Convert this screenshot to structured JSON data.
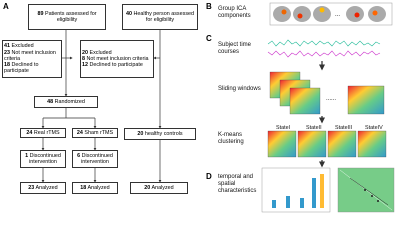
{
  "panel_a": {
    "label": "A",
    "patients": {
      "count": "89",
      "text": "Patients assessed for eligibility"
    },
    "healthy": {
      "count": "40",
      "text": "Healthy person assessed for eligibility"
    },
    "excluded_left": [
      {
        "count": "41",
        "text": "Excluded"
      },
      {
        "count": "23",
        "text": "Not meet inclusion criteria"
      },
      {
        "count": "18",
        "text": "Declined to participate"
      }
    ],
    "excluded_right": [
      {
        "count": "20",
        "text": "Excluded"
      },
      {
        "count": "8",
        "text": "Not meet inclusion criteria"
      },
      {
        "count": "12",
        "text": "Declined to participate"
      }
    ],
    "randomized": {
      "count": "48",
      "text": "Randomized"
    },
    "real": {
      "count": "24",
      "text": "Real rTMS"
    },
    "sham": {
      "count": "24",
      "text": "Sham rTMS"
    },
    "controls": {
      "count": "20",
      "text": "healthy controls"
    },
    "disc_real": {
      "count": "1",
      "text": "Discontinued intervention"
    },
    "disc_sham": {
      "count": "6",
      "text": "Discontinued intervention"
    },
    "an_real": {
      "count": "23",
      "text": "Analyzed"
    },
    "an_sham": {
      "count": "18",
      "text": "Analyzed"
    },
    "an_hc": {
      "count": "20",
      "text": "Analyzed"
    }
  },
  "panel_b": {
    "label": "B",
    "text": "Group ICA components"
  },
  "panel_c": {
    "label": "C",
    "time_courses": "Subject time courses",
    "sliding": "Sliding windows",
    "dots": "......",
    "kmeans": "K-means clustering",
    "states": [
      "StateI",
      "StateII",
      "StateIII",
      "StateIV"
    ]
  },
  "panel_d": {
    "label": "D",
    "text": "temporal and spatial characteristics"
  }
}
